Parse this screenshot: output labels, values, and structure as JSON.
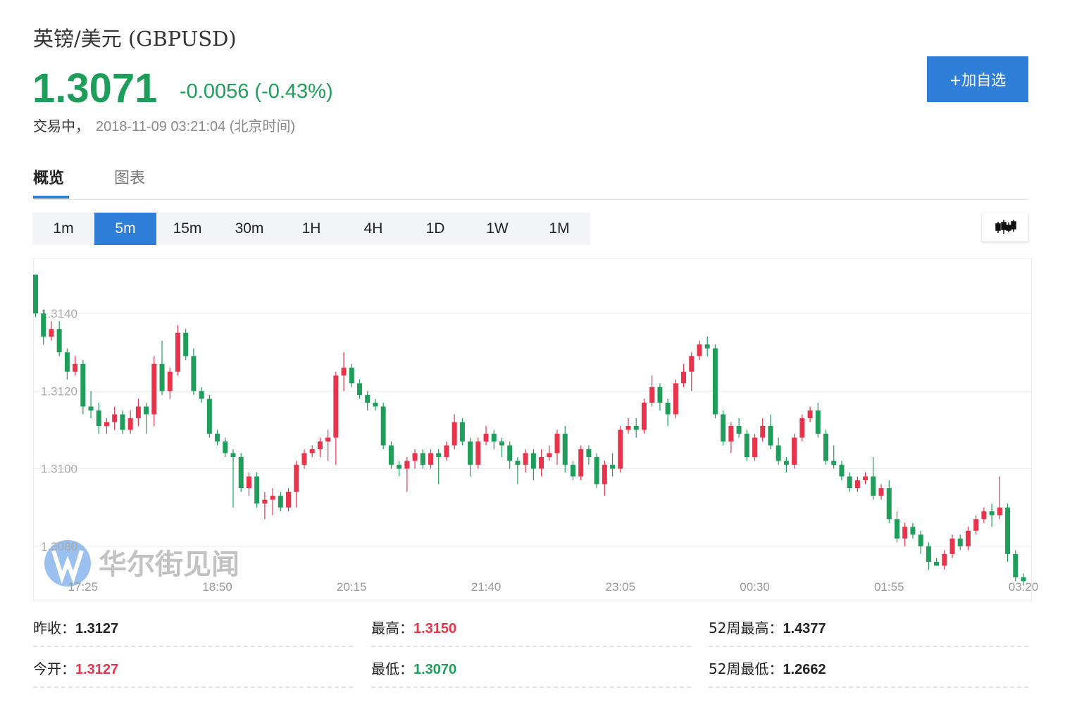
{
  "header": {
    "title": "英镑/美元 (GBPUSD)",
    "price": "1.3071",
    "change": "-0.0056 (-0.43%)",
    "status": "交易中，",
    "time": "2018-11-09 03:21:04 (北京时间)",
    "button": "+加自选"
  },
  "tabs": [
    "概览",
    "图表"
  ],
  "intervals": [
    "1m",
    "5m",
    "15m",
    "30m",
    "1H",
    "4H",
    "1D",
    "1W",
    "1M"
  ],
  "active_interval": 1,
  "stats": [
    {
      "label": "昨收：",
      "value": "1.3127",
      "color": "#222222"
    },
    {
      "label": "最高：",
      "value": "1.3150",
      "color": "#e8334a"
    },
    {
      "label": "52周最高：",
      "value": "1.4377",
      "color": "#222222"
    },
    {
      "label": "今开：",
      "value": "1.3127",
      "color": "#e8334a"
    },
    {
      "label": "最低：",
      "value": "1.3070",
      "color": "#1e9e5a"
    },
    {
      "label": "52周最低：",
      "value": "1.2662",
      "color": "#222222"
    }
  ],
  "chart_data": {
    "type": "candlestick",
    "watermark": "华尔街见闻",
    "up_color": "#e8334a",
    "down_color": "#1e9e5a",
    "grid": true,
    "ylim": [
      1.3066,
      1.3154
    ],
    "yticks": [
      {
        "value": 1.314,
        "label": "1.3140"
      },
      {
        "value": 1.312,
        "label": "1.3120"
      },
      {
        "value": 1.31,
        "label": "1.3100"
      },
      {
        "value": 1.308,
        "label": "1.3080"
      }
    ],
    "xticks": [
      {
        "value": 6,
        "label": "17:25"
      },
      {
        "value": 23,
        "label": "18:50"
      },
      {
        "value": 40,
        "label": "20:15"
      },
      {
        "value": 57,
        "label": "21:40"
      },
      {
        "value": 74,
        "label": "23:05"
      },
      {
        "value": 91,
        "label": "00:30"
      },
      {
        "value": 108,
        "label": "01:55"
      },
      {
        "value": 125,
        "label": "03:20"
      }
    ],
    "candles": [
      [
        1.315,
        1.315,
        1.3139,
        1.314
      ],
      [
        1.314,
        1.3141,
        1.3132,
        1.3134
      ],
      [
        1.3134,
        1.3138,
        1.3133,
        1.3136
      ],
      [
        1.3136,
        1.3138,
        1.3129,
        1.313
      ],
      [
        1.313,
        1.3131,
        1.3123,
        1.3125
      ],
      [
        1.3125,
        1.3129,
        1.3124,
        1.3127
      ],
      [
        1.3127,
        1.3128,
        1.3114,
        1.3116
      ],
      [
        1.3116,
        1.312,
        1.3113,
        1.3115
      ],
      [
        1.3115,
        1.3117,
        1.3109,
        1.3111
      ],
      [
        1.3111,
        1.3113,
        1.3109,
        1.3112
      ],
      [
        1.3112,
        1.3116,
        1.311,
        1.3114
      ],
      [
        1.3114,
        1.3115,
        1.3109,
        1.311
      ],
      [
        1.311,
        1.3115,
        1.3109,
        1.3113
      ],
      [
        1.3113,
        1.3118,
        1.3111,
        1.3116
      ],
      [
        1.3116,
        1.3117,
        1.3109,
        1.3114
      ],
      [
        1.3114,
        1.3129,
        1.3111,
        1.3127
      ],
      [
        1.3127,
        1.3133,
        1.3119,
        1.312
      ],
      [
        1.312,
        1.3126,
        1.3118,
        1.3125
      ],
      [
        1.3125,
        1.3137,
        1.3124,
        1.3135
      ],
      [
        1.3135,
        1.3136,
        1.3128,
        1.3129
      ],
      [
        1.3129,
        1.3131,
        1.3119,
        1.312
      ],
      [
        1.312,
        1.3121,
        1.3117,
        1.3118
      ],
      [
        1.3118,
        1.3119,
        1.3108,
        1.3109
      ],
      [
        1.3109,
        1.311,
        1.3106,
        1.3107
      ],
      [
        1.3107,
        1.3108,
        1.3103,
        1.3104
      ],
      [
        1.3104,
        1.3105,
        1.309,
        1.3103
      ],
      [
        1.3103,
        1.3104,
        1.3094,
        1.3095
      ],
      [
        1.3095,
        1.3099,
        1.3093,
        1.3098
      ],
      [
        1.3098,
        1.3099,
        1.309,
        1.3091
      ],
      [
        1.3091,
        1.3094,
        1.3087,
        1.3092
      ],
      [
        1.3092,
        1.3095,
        1.3088,
        1.3093
      ],
      [
        1.3093,
        1.3094,
        1.3089,
        1.309
      ],
      [
        1.309,
        1.3095,
        1.3089,
        1.3094
      ],
      [
        1.3094,
        1.3102,
        1.309,
        1.3101
      ],
      [
        1.3101,
        1.3105,
        1.31,
        1.3104
      ],
      [
        1.3104,
        1.3106,
        1.3103,
        1.3105
      ],
      [
        1.3105,
        1.3108,
        1.3103,
        1.3107
      ],
      [
        1.3107,
        1.311,
        1.3102,
        1.3108
      ],
      [
        1.3108,
        1.3125,
        1.3101,
        1.3124
      ],
      [
        1.3124,
        1.313,
        1.312,
        1.3126
      ],
      [
        1.3126,
        1.3127,
        1.3121,
        1.3122
      ],
      [
        1.3122,
        1.3123,
        1.3118,
        1.3119
      ],
      [
        1.3119,
        1.312,
        1.3115,
        1.3117
      ],
      [
        1.3117,
        1.3118,
        1.3115,
        1.3116
      ],
      [
        1.3116,
        1.3117,
        1.3105,
        1.3106
      ],
      [
        1.3106,
        1.3107,
        1.31,
        1.3101
      ],
      [
        1.3101,
        1.3102,
        1.3098,
        1.31
      ],
      [
        1.31,
        1.3103,
        1.3094,
        1.3102
      ],
      [
        1.3102,
        1.3105,
        1.31,
        1.3104
      ],
      [
        1.3104,
        1.3105,
        1.31,
        1.3101
      ],
      [
        1.3101,
        1.3105,
        1.31,
        1.3104
      ],
      [
        1.3104,
        1.3105,
        1.3096,
        1.3103
      ],
      [
        1.3103,
        1.3107,
        1.3102,
        1.3106
      ],
      [
        1.3106,
        1.3114,
        1.3105,
        1.3112
      ],
      [
        1.3112,
        1.3113,
        1.3106,
        1.3107
      ],
      [
        1.3107,
        1.3108,
        1.3098,
        1.3101
      ],
      [
        1.3101,
        1.3108,
        1.31,
        1.3107
      ],
      [
        1.3107,
        1.3111,
        1.3106,
        1.3109
      ],
      [
        1.3109,
        1.311,
        1.3105,
        1.3107
      ],
      [
        1.3107,
        1.3108,
        1.3103,
        1.3106
      ],
      [
        1.3106,
        1.3107,
        1.31,
        1.3102
      ],
      [
        1.3102,
        1.3103,
        1.3096,
        1.3101
      ],
      [
        1.3101,
        1.3105,
        1.3099,
        1.3104
      ],
      [
        1.3104,
        1.3105,
        1.3097,
        1.31
      ],
      [
        1.31,
        1.3105,
        1.3098,
        1.3103
      ],
      [
        1.3103,
        1.3106,
        1.3102,
        1.3104
      ],
      [
        1.3104,
        1.311,
        1.3101,
        1.3109
      ],
      [
        1.3109,
        1.3111,
        1.3099,
        1.3101
      ],
      [
        1.3101,
        1.3102,
        1.3097,
        1.3098
      ],
      [
        1.3098,
        1.3106,
        1.3097,
        1.3105
      ],
      [
        1.3105,
        1.3106,
        1.3101,
        1.3103
      ],
      [
        1.3103,
        1.3104,
        1.3095,
        1.3096
      ],
      [
        1.3096,
        1.3102,
        1.3093,
        1.3101
      ],
      [
        1.3101,
        1.3104,
        1.3098,
        1.31
      ],
      [
        1.31,
        1.3111,
        1.3099,
        1.311
      ],
      [
        1.311,
        1.3113,
        1.3109,
        1.3111
      ],
      [
        1.3111,
        1.3113,
        1.3108,
        1.311
      ],
      [
        1.311,
        1.3118,
        1.3109,
        1.3117
      ],
      [
        1.3117,
        1.3124,
        1.3116,
        1.3121
      ],
      [
        1.3121,
        1.3122,
        1.3115,
        1.3117
      ],
      [
        1.3117,
        1.3118,
        1.3111,
        1.3114
      ],
      [
        1.3114,
        1.3123,
        1.3113,
        1.3122
      ],
      [
        1.3122,
        1.3127,
        1.3121,
        1.3125
      ],
      [
        1.3125,
        1.313,
        1.312,
        1.3129
      ],
      [
        1.3129,
        1.3133,
        1.3128,
        1.3132
      ],
      [
        1.3132,
        1.3134,
        1.3129,
        1.3131
      ],
      [
        1.3131,
        1.3132,
        1.3113,
        1.3114
      ],
      [
        1.3114,
        1.3115,
        1.3106,
        1.3107
      ],
      [
        1.3107,
        1.3112,
        1.3104,
        1.3111
      ],
      [
        1.3111,
        1.3113,
        1.3108,
        1.3109
      ],
      [
        1.3109,
        1.311,
        1.3102,
        1.3103
      ],
      [
        1.3103,
        1.3109,
        1.3102,
        1.3108
      ],
      [
        1.3108,
        1.3113,
        1.3107,
        1.3111
      ],
      [
        1.3111,
        1.3114,
        1.3105,
        1.3106
      ],
      [
        1.3106,
        1.3108,
        1.3101,
        1.3102
      ],
      [
        1.3102,
        1.3103,
        1.3099,
        1.3101
      ],
      [
        1.3101,
        1.3109,
        1.31,
        1.3108
      ],
      [
        1.3108,
        1.3114,
        1.3107,
        1.3113
      ],
      [
        1.3113,
        1.3116,
        1.3112,
        1.3115
      ],
      [
        1.3115,
        1.3117,
        1.3108,
        1.3109
      ],
      [
        1.3109,
        1.311,
        1.3101,
        1.3102
      ],
      [
        1.3102,
        1.3106,
        1.31,
        1.3101
      ],
      [
        1.3101,
        1.3102,
        1.3097,
        1.3098
      ],
      [
        1.3098,
        1.3099,
        1.3094,
        1.3095
      ],
      [
        1.3095,
        1.3098,
        1.3094,
        1.3097
      ],
      [
        1.3097,
        1.3099,
        1.3096,
        1.3098
      ],
      [
        1.3098,
        1.3103,
        1.3092,
        1.3093
      ],
      [
        1.3093,
        1.3096,
        1.3092,
        1.3095
      ],
      [
        1.3095,
        1.3097,
        1.3086,
        1.3087
      ],
      [
        1.3087,
        1.3089,
        1.3081,
        1.3082
      ],
      [
        1.3082,
        1.3086,
        1.308,
        1.3085
      ],
      [
        1.3085,
        1.3086,
        1.3082,
        1.3083
      ],
      [
        1.3083,
        1.3084,
        1.3078,
        1.308
      ],
      [
        1.308,
        1.3081,
        1.3074,
        1.3076
      ],
      [
        1.3076,
        1.3077,
        1.3075,
        1.3075
      ],
      [
        1.3075,
        1.3079,
        1.3074,
        1.3078
      ],
      [
        1.3078,
        1.3083,
        1.3077,
        1.3082
      ],
      [
        1.3082,
        1.3083,
        1.3079,
        1.308
      ],
      [
        1.308,
        1.3085,
        1.3079,
        1.3084
      ],
      [
        1.3084,
        1.3088,
        1.3083,
        1.3087
      ],
      [
        1.3087,
        1.309,
        1.3086,
        1.3089
      ],
      [
        1.3089,
        1.3091,
        1.3085,
        1.3088
      ],
      [
        1.3088,
        1.3098,
        1.3087,
        1.309
      ],
      [
        1.309,
        1.3091,
        1.3076,
        1.3078
      ],
      [
        1.3078,
        1.3079,
        1.3071,
        1.3072
      ],
      [
        1.3072,
        1.3073,
        1.307,
        1.3071
      ]
    ]
  }
}
